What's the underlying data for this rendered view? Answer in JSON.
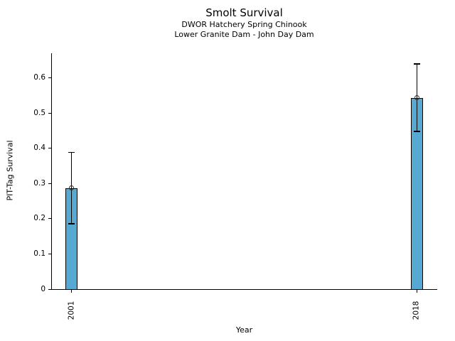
{
  "chart_data": {
    "type": "bar",
    "title": "Smolt Survival",
    "subtitle1": "DWOR Hatchery Spring Chinook",
    "subtitle2": "Lower Granite Dam - John Day Dam",
    "xlabel": "Year",
    "ylabel": "PIT-Tag Survival",
    "categories": [
      "2001",
      "2018"
    ],
    "x_values": [
      2001,
      2018
    ],
    "values": [
      0.287,
      0.543
    ],
    "error_low": [
      0.186,
      0.448
    ],
    "error_high": [
      0.388,
      0.64
    ],
    "yticks": [
      0,
      0.1,
      0.2,
      0.3,
      0.4,
      0.5,
      0.6
    ],
    "ytick_labels": [
      "0",
      "0.1",
      "0.2",
      "0.3",
      "0.4",
      "0.5",
      "0.6"
    ],
    "ylim": [
      0,
      0.67
    ],
    "xlim": [
      2000,
      2019
    ],
    "bar_color": "#56A9D3",
    "bar_edge_color": "#000000",
    "error_color": "#000000",
    "marker": "open-circle",
    "grid": false,
    "legend": false
  }
}
